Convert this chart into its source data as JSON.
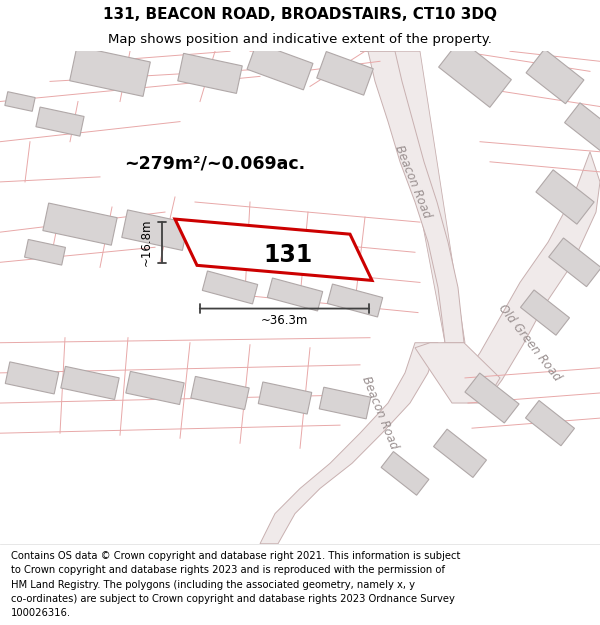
{
  "title_line1": "131, BEACON ROAD, BROADSTAIRS, CT10 3DQ",
  "title_line2": "Map shows position and indicative extent of the property.",
  "footer_lines": [
    "Contains OS data © Crown copyright and database right 2021. This information is subject",
    "to Crown copyright and database rights 2023 and is reproduced with the permission of",
    "HM Land Registry. The polygons (including the associated geometry, namely x, y",
    "co-ordinates) are subject to Crown copyright and database rights 2023 Ordnance Survey",
    "100026316."
  ],
  "map_bg": "#faf8f8",
  "building_fill": "#d8d4d4",
  "building_edge": "#b0a8a8",
  "road_fill": "#f0eaea",
  "road_edge": "#c8b0b0",
  "cadastral_color": "#e8a8a8",
  "highlight_color": "#cc0000",
  "area_text": "~279m²/~0.069ac.",
  "plot_number": "131",
  "dim_width": "~36.3m",
  "dim_height": "~16.8m",
  "road_label_beacon_upper": "Beacon Road",
  "road_label_beacon_lower": "Beacon Road",
  "road_label_old_green": "Old Green Road",
  "title_fontsize": 11,
  "subtitle_fontsize": 9.5,
  "footer_fontsize": 7.2
}
